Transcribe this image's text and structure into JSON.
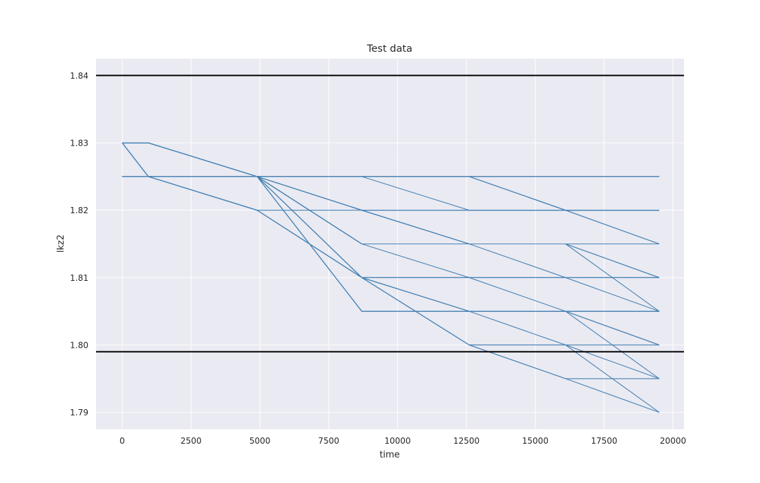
{
  "chart_data": {
    "type": "line",
    "title": "Test data",
    "xlabel": "time",
    "ylabel": "lkz2",
    "xlim": [
      -950,
      20400
    ],
    "ylim": [
      1.7875,
      1.8425
    ],
    "x_ticks": [
      0,
      2500,
      5000,
      7500,
      10000,
      12500,
      15000,
      17500,
      20000
    ],
    "y_ticks": [
      1.79,
      1.8,
      1.81,
      1.82,
      1.83,
      1.84
    ],
    "y_tick_labels": [
      "1.79",
      "1.80",
      "1.81",
      "1.82",
      "1.83",
      "1.84"
    ],
    "grid": true,
    "legend": "none",
    "colors": {
      "background": "#eaeaf2",
      "grid": "#ffffff",
      "line": "#4682b4",
      "reference": "#000000"
    },
    "reference_lines": [
      1.84,
      1.799
    ],
    "series": [
      {
        "x": [
          0,
          950,
          4900,
          8700,
          12600,
          16100,
          19500
        ],
        "y": [
          1.83,
          1.83,
          1.825,
          1.825,
          1.825,
          1.825,
          1.825
        ]
      },
      {
        "x": [
          0,
          950,
          4900,
          8700,
          12600,
          16100,
          19500
        ],
        "y": [
          1.83,
          1.83,
          1.825,
          1.825,
          1.825,
          1.82,
          1.82
        ]
      },
      {
        "x": [
          0,
          950,
          4900,
          8700,
          12600,
          16100,
          19500
        ],
        "y": [
          1.83,
          1.83,
          1.825,
          1.825,
          1.825,
          1.82,
          1.815
        ]
      },
      {
        "x": [
          0,
          950,
          4900,
          8700,
          12600,
          16100,
          19500
        ],
        "y": [
          1.83,
          1.83,
          1.825,
          1.82,
          1.82,
          1.82,
          1.82
        ]
      },
      {
        "x": [
          0,
          950,
          4900,
          8700,
          12600,
          16100,
          19500
        ],
        "y": [
          1.83,
          1.83,
          1.825,
          1.82,
          1.815,
          1.815,
          1.815
        ]
      },
      {
        "x": [
          0,
          950,
          4900,
          8700,
          12600,
          16100,
          19500
        ],
        "y": [
          1.83,
          1.83,
          1.825,
          1.82,
          1.815,
          1.815,
          1.81
        ]
      },
      {
        "x": [
          0,
          950,
          4900,
          8700,
          12600,
          16100,
          19500
        ],
        "y": [
          1.83,
          1.83,
          1.825,
          1.815,
          1.815,
          1.815,
          1.815
        ]
      },
      {
        "x": [
          0,
          950,
          4900,
          8700,
          12600,
          16100,
          19500
        ],
        "y": [
          1.83,
          1.83,
          1.825,
          1.815,
          1.815,
          1.815,
          1.805
        ]
      },
      {
        "x": [
          0,
          950,
          4900,
          8700,
          12600,
          16100,
          19500
        ],
        "y": [
          1.83,
          1.825,
          1.825,
          1.825,
          1.825,
          1.825,
          1.825
        ]
      },
      {
        "x": [
          0,
          950,
          4900,
          8700,
          12600,
          16100,
          19500
        ],
        "y": [
          1.83,
          1.825,
          1.825,
          1.815,
          1.81,
          1.805,
          1.8
        ]
      },
      {
        "x": [
          0,
          950,
          4900,
          8700,
          12600,
          16100,
          19500
        ],
        "y": [
          1.83,
          1.825,
          1.825,
          1.81,
          1.81,
          1.81,
          1.81
        ]
      },
      {
        "x": [
          0,
          950,
          4900,
          8700,
          12600,
          16100,
          19500
        ],
        "y": [
          1.83,
          1.825,
          1.825,
          1.81,
          1.805,
          1.805,
          1.805
        ]
      },
      {
        "x": [
          0,
          950,
          4900,
          8700,
          12600,
          16100,
          19500
        ],
        "y": [
          1.83,
          1.825,
          1.825,
          1.805,
          1.805,
          1.805,
          1.805
        ]
      },
      {
        "x": [
          0,
          950,
          4900,
          8700,
          12600,
          16100,
          19500
        ],
        "y": [
          1.83,
          1.825,
          1.825,
          1.805,
          1.805,
          1.8,
          1.8
        ]
      },
      {
        "x": [
          0,
          950,
          4900,
          8700,
          12600,
          16100,
          19500
        ],
        "y": [
          1.825,
          1.825,
          1.825,
          1.825,
          1.825,
          1.825,
          1.825
        ]
      },
      {
        "x": [
          0,
          950,
          4900,
          8700,
          12600,
          16100,
          19500
        ],
        "y": [
          1.825,
          1.825,
          1.825,
          1.825,
          1.825,
          1.82,
          1.815
        ]
      },
      {
        "x": [
          0,
          950,
          4900,
          8700,
          12600,
          16100,
          19500
        ],
        "y": [
          1.825,
          1.825,
          1.825,
          1.825,
          1.82,
          1.82,
          1.82
        ]
      },
      {
        "x": [
          0,
          950,
          4900,
          8700,
          12600,
          16100,
          19500
        ],
        "y": [
          1.825,
          1.825,
          1.825,
          1.82,
          1.815,
          1.81,
          1.805
        ]
      },
      {
        "x": [
          0,
          950,
          4900,
          8700,
          12600,
          16100,
          19500
        ],
        "y": [
          1.825,
          1.825,
          1.825,
          1.82,
          1.815,
          1.815,
          1.815
        ]
      },
      {
        "x": [
          0,
          950,
          4900,
          8700,
          12600,
          16100,
          19500
        ],
        "y": [
          1.825,
          1.825,
          1.825,
          1.815,
          1.815,
          1.815,
          1.81
        ]
      },
      {
        "x": [
          0,
          950,
          4900,
          8700,
          12600,
          16100,
          19500
        ],
        "y": [
          1.825,
          1.825,
          1.825,
          1.81,
          1.8,
          1.8,
          1.79
        ]
      },
      {
        "x": [
          0,
          950,
          4900,
          8700,
          12600,
          16100,
          19500
        ],
        "y": [
          1.825,
          1.825,
          1.825,
          1.81,
          1.805,
          1.805,
          1.8
        ]
      },
      {
        "x": [
          0,
          950,
          4900,
          8700,
          12600,
          16100,
          19500
        ],
        "y": [
          1.825,
          1.825,
          1.825,
          1.805,
          1.805,
          1.805,
          1.805
        ]
      },
      {
        "x": [
          0,
          950,
          4900,
          8700,
          12600,
          16100,
          19500
        ],
        "y": [
          1.825,
          1.825,
          1.825,
          1.805,
          1.805,
          1.805,
          1.795
        ]
      },
      {
        "x": [
          0,
          950,
          4900,
          8700,
          12600,
          16100,
          19500
        ],
        "y": [
          1.825,
          1.825,
          1.82,
          1.82,
          1.82,
          1.82,
          1.82
        ]
      },
      {
        "x": [
          0,
          950,
          4900,
          8700,
          12600,
          16100,
          19500
        ],
        "y": [
          1.825,
          1.825,
          1.82,
          1.81,
          1.81,
          1.81,
          1.81
        ]
      },
      {
        "x": [
          0,
          950,
          4900,
          8700,
          12600,
          16100,
          19500
        ],
        "y": [
          1.825,
          1.825,
          1.82,
          1.81,
          1.805,
          1.805,
          1.805
        ]
      },
      {
        "x": [
          0,
          950,
          4900,
          8700,
          12600,
          16100,
          19500
        ],
        "y": [
          1.825,
          1.825,
          1.82,
          1.81,
          1.8,
          1.8,
          1.795
        ]
      },
      {
        "x": [
          0,
          950,
          4900,
          8700,
          12600,
          16100,
          19500
        ],
        "y": [
          1.825,
          1.825,
          1.82,
          1.81,
          1.8,
          1.795,
          1.79
        ]
      },
      {
        "x": [
          0,
          950,
          4900,
          8700,
          12600,
          16100,
          19500
        ],
        "y": [
          1.825,
          1.825,
          1.82,
          1.81,
          1.8,
          1.795,
          1.795
        ]
      }
    ]
  }
}
